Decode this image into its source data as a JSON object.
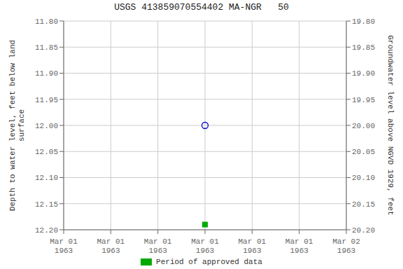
{
  "chart_data": {
    "type": "scatter",
    "title": "USGS 413859070554402 MA-NGR   50",
    "ylabel": "Depth to water level, feet below land\nsurface",
    "y2label": "Groundwater level above NGVD 1929, feet",
    "categories": [
      "Mar 01\n1963",
      "Mar 01\n1963",
      "Mar 01\n1963",
      "Mar 01\n1963",
      "Mar 01\n1963",
      "Mar 01\n1963",
      "Mar 02\n1963"
    ],
    "series": [
      {
        "color": "#0000cc",
        "marker": "circle",
        "values": [
          null,
          null,
          null,
          12.0,
          null,
          null,
          null
        ]
      },
      {
        "name": "Period of approved data",
        "color": "#00aa00",
        "marker": "square",
        "values": [
          null,
          null,
          null,
          12.19,
          null,
          null,
          null
        ]
      }
    ],
    "ylim": [
      12.2,
      11.8
    ],
    "yticks": [
      {
        "value": 11.8,
        "label": "11.80"
      },
      11.85,
      {
        "value": 11.9,
        "label": "11.90"
      },
      11.95,
      {
        "value": 12,
        "label": "12.00"
      },
      12.05,
      {
        "value": 12.1,
        "label": "12.10"
      },
      12.15,
      {
        "value": 12.2,
        "label": "12.20"
      }
    ],
    "y2lim": [
      20.2,
      19.8
    ],
    "y2ticks": [
      {
        "value": 20.2,
        "label": "20.20"
      },
      20.15,
      {
        "value": 20.1,
        "label": "20.10"
      },
      20.05,
      {
        "value": 20,
        "label": "20.00"
      },
      19.95,
      {
        "value": 19.9,
        "label": "19.90"
      },
      19.85,
      {
        "value": 19.8,
        "label": "19.80"
      }
    ],
    "grid": true,
    "legend": "bottom"
  }
}
